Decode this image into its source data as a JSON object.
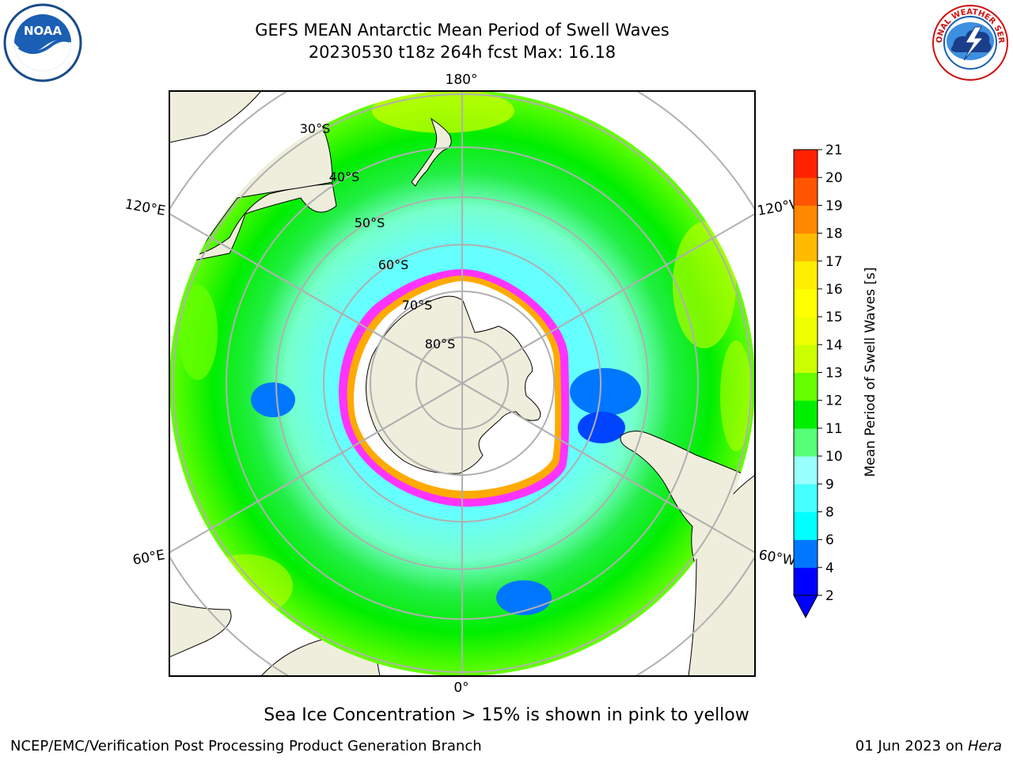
{
  "header": {
    "title_line1": "GEFS MEAN Antarctic Mean Period of Swell Waves",
    "title_line2": "20230530 t18z 264h fcst   Max: 16.18"
  },
  "logos": {
    "left": "noaa-logo",
    "left_text": "NOAA",
    "right": "nws-logo",
    "right_text": "NATIONAL WEATHER SERVICE"
  },
  "chart_data": {
    "type": "heatmap",
    "projection": "south-polar-stereographic",
    "variable": "Mean Period of Swell Waves",
    "unit": "s",
    "max_value": 16.18,
    "longitude_labels": [
      "180°",
      "120°E",
      "120°W",
      "60°E",
      "60°W",
      "0°"
    ],
    "latitude_labels": [
      "30°S",
      "40°S",
      "50°S",
      "60°S",
      "70°S",
      "80°S"
    ],
    "colorbar": {
      "label": "Mean Period of Swell Waves [s]",
      "ticks": [
        2,
        4,
        6,
        8,
        9,
        10,
        11,
        12,
        13,
        14,
        15,
        16,
        17,
        18,
        19,
        20,
        21
      ],
      "colors": [
        "#0000ff",
        "#0077ff",
        "#00ffff",
        "#44ffff",
        "#99ffff",
        "#55ff77",
        "#00ee00",
        "#66ff00",
        "#ccff00",
        "#eeff00",
        "#ffff00",
        "#ffee00",
        "#ffbb00",
        "#ff8800",
        "#ff5500",
        "#ff2200"
      ],
      "extend": "min"
    },
    "sea_ice_colors": [
      "#ff00ff",
      "#ffaa00",
      "#ffff00"
    ]
  },
  "caption": "Sea Ice Concentration > 15% is shown in pink to yellow",
  "footer": {
    "left": "NCEP/EMC/Verification Post Processing Product Generation Branch",
    "right_prefix": "01 Jun 2023 on ",
    "right_host": "Hera"
  }
}
